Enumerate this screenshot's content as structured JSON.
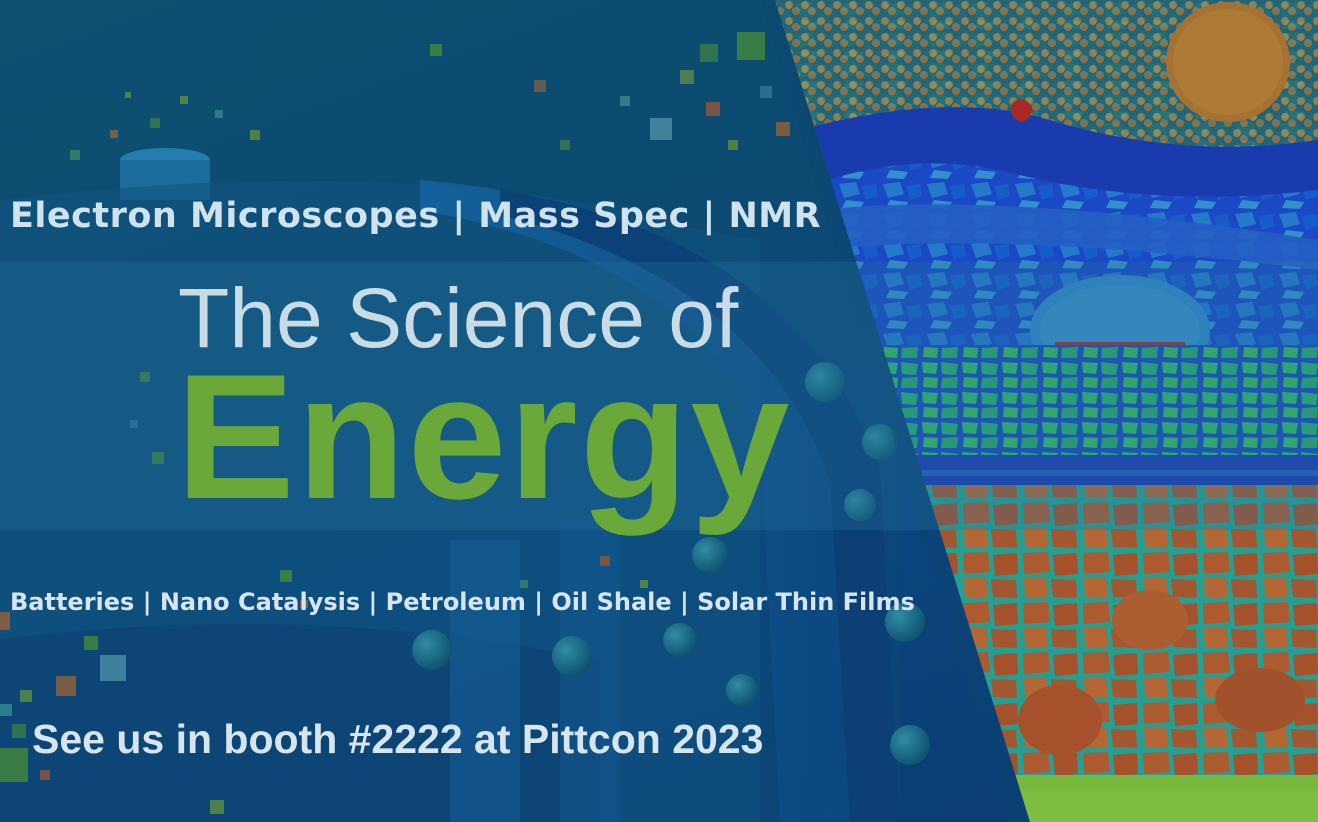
{
  "banner": {
    "instruments_line": "Electron Microscopes | Mass Spec | NMR",
    "headline": "The Science of",
    "headline_emphasis": "Energy",
    "applications_line": "Batteries | Nano Catalysis | Petroleum | Oil Shale | Solar Thin Films",
    "booth_line": "See us in booth #2222 at Pittcon 2023"
  },
  "colors": {
    "background": "#0d4f78",
    "headline_text": "#c9dce6",
    "emphasis_green": "#6aa83a",
    "micrograph_blue": "#1a3fd1",
    "micrograph_orange": "#c4612a"
  }
}
